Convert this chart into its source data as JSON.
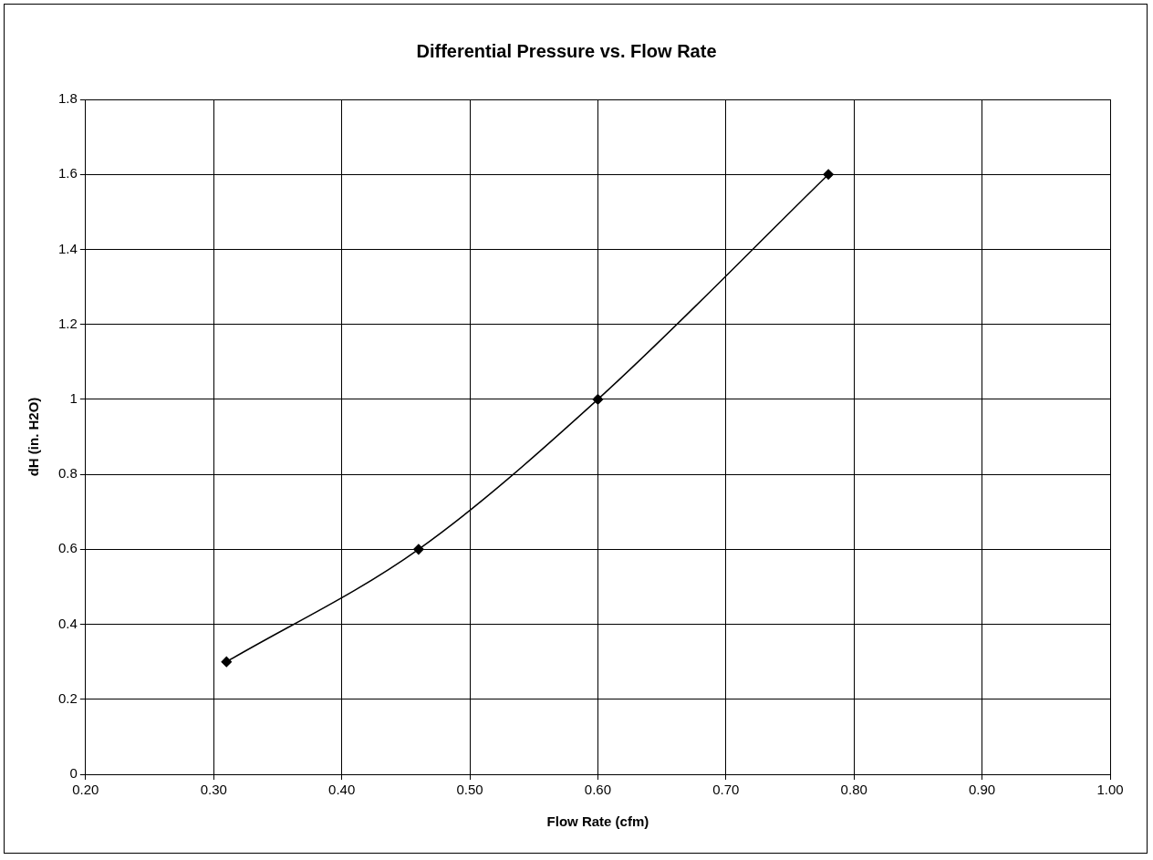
{
  "chart_data": {
    "type": "line",
    "title": "Differential Pressure vs. Flow Rate",
    "xlabel": "Flow Rate (cfm)",
    "ylabel": "dH (in. H2O)",
    "x": [
      0.31,
      0.46,
      0.6,
      0.78
    ],
    "series": [
      {
        "color": "#000000",
        "values": [
          0.3,
          0.6,
          1.0,
          1.6
        ]
      }
    ],
    "xlim": [
      0.2,
      1.0
    ],
    "xticks": [
      {
        "value": 0.2,
        "label": "0.20"
      },
      {
        "value": 0.3,
        "label": "0.30"
      },
      {
        "value": 0.4,
        "label": "0.40"
      },
      {
        "value": 0.5,
        "label": "0.50"
      },
      {
        "value": 0.6,
        "label": "0.60"
      },
      {
        "value": 0.7,
        "label": "0.70"
      },
      {
        "value": 0.8,
        "label": "0.80"
      },
      {
        "value": 0.9,
        "label": "0.90"
      },
      {
        "value": 1.0,
        "label": "1.00"
      }
    ],
    "ylim": [
      0,
      1.8
    ],
    "yticks": [
      0,
      0.2,
      0.4,
      0.6,
      0.8,
      1,
      1.2,
      1.4,
      1.6,
      1.8
    ],
    "grid": true,
    "legend": false,
    "marker": "diamond",
    "line_style": "solid"
  }
}
